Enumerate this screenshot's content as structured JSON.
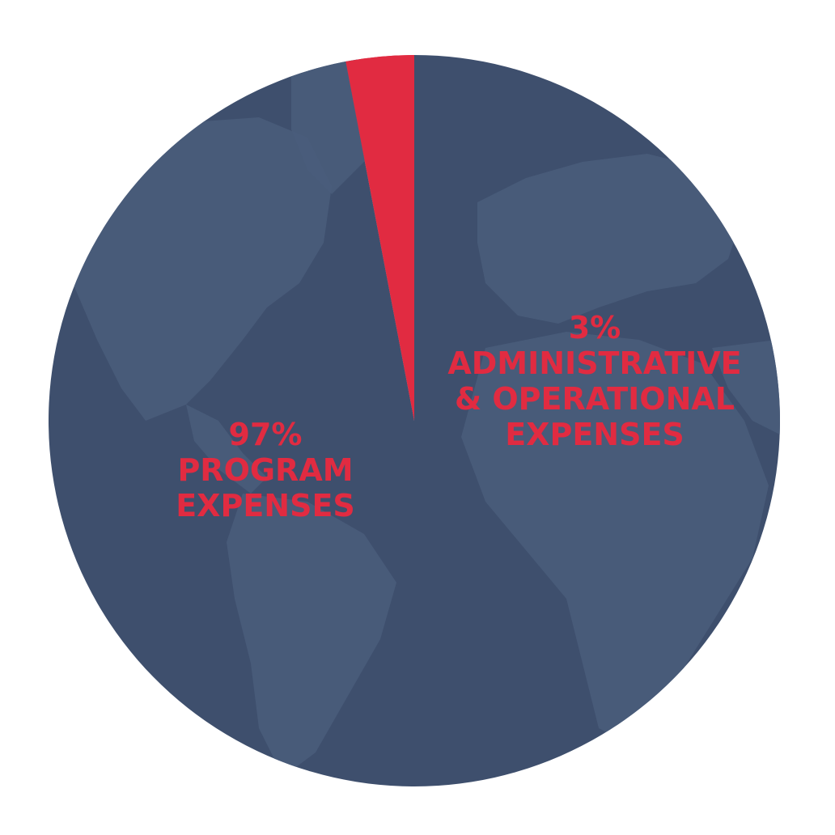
{
  "chart_data": {
    "type": "pie",
    "slices": [
      {
        "label": "PROGRAM EXPENSES",
        "value": 97
      },
      {
        "label": "ADMINISTRATIVE & OPERATIONAL EXPENSES",
        "value": 3
      }
    ],
    "labels": {
      "program": {
        "pct": "97%",
        "line1": "PROGRAM",
        "line2": "EXPENSES"
      },
      "admin": {
        "pct": "3%",
        "line1": "ADMINISTRATIVE",
        "line2": "& OPERATIONAL",
        "line3": "EXPENSES"
      }
    },
    "colors": {
      "program": "#3e4f6d",
      "admin": "#e12b41",
      "map_land": "#4a5d7b",
      "label_text": "#e12b41"
    },
    "background": "world-map"
  }
}
